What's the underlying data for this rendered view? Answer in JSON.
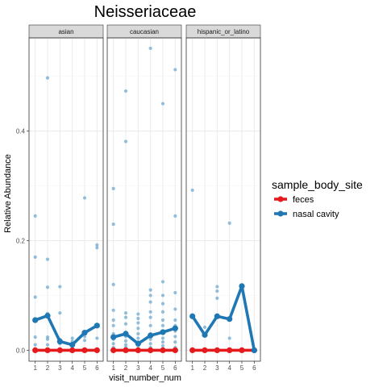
{
  "chart_data": {
    "type": "line",
    "title": "Neisseriaceae",
    "xlabel": "visit_number_num",
    "ylabel": "Relative Abundance",
    "x_ticks": [
      1,
      2,
      3,
      4,
      5,
      6
    ],
    "y_ticks": [
      0.0,
      0.2,
      0.4
    ],
    "y_tick_labels": [
      "0.0",
      "0.2",
      "0.4"
    ],
    "xlim": [
      0.5,
      6.5
    ],
    "ylim": [
      -0.02,
      0.57
    ],
    "grid": true,
    "legend_position": "right",
    "legend": {
      "title": "sample_body_site",
      "entries": [
        {
          "label": "feces",
          "color": "#e41a1c"
        },
        {
          "label": "nasal cavity",
          "color": "#1f78b4"
        }
      ]
    },
    "point_color": "#6fa8d0",
    "panels": [
      {
        "strip": "asian",
        "series": [
          {
            "name": "feces",
            "color": "#e41a1c",
            "x": [
              1,
              2,
              3,
              4,
              5,
              6
            ],
            "y": [
              0,
              0,
              0,
              0,
              0,
              0
            ]
          },
          {
            "name": "nasal cavity",
            "color": "#1f78b4",
            "x": [
              1,
              2,
              3,
              4,
              5,
              6
            ],
            "y": [
              0.055,
              0.063,
              0.016,
              0.01,
              0.032,
              0.045
            ]
          }
        ],
        "points": [
          [
            1,
            0.245
          ],
          [
            1,
            0.17
          ],
          [
            1,
            0.097
          ],
          [
            1,
            0.055
          ],
          [
            1,
            0.024
          ],
          [
            1,
            0.01
          ],
          [
            1,
            0.0
          ],
          [
            2,
            0.497
          ],
          [
            2,
            0.166
          ],
          [
            2,
            0.115
          ],
          [
            2,
            0.067
          ],
          [
            2,
            0.024
          ],
          [
            2,
            0.02
          ],
          [
            2,
            0.01
          ],
          [
            2,
            0.0
          ],
          [
            3,
            0.116
          ],
          [
            3,
            0.068
          ],
          [
            3,
            0.02
          ],
          [
            3,
            0.012
          ],
          [
            3,
            0.0
          ],
          [
            4,
            0.022
          ],
          [
            4,
            0.016
          ],
          [
            4,
            0.012
          ],
          [
            4,
            0.0
          ],
          [
            5,
            0.278
          ],
          [
            5,
            0.025
          ],
          [
            5,
            0.018
          ],
          [
            5,
            0.0
          ],
          [
            6,
            0.192
          ],
          [
            6,
            0.187
          ],
          [
            6,
            0.045
          ],
          [
            6,
            0.022
          ],
          [
            6,
            0.0
          ]
        ]
      },
      {
        "strip": "caucasian",
        "series": [
          {
            "name": "feces",
            "color": "#e41a1c",
            "x": [
              1,
              2,
              3,
              4,
              5,
              6
            ],
            "y": [
              0,
              0,
              0,
              0,
              0,
              0
            ]
          },
          {
            "name": "nasal cavity",
            "color": "#1f78b4",
            "x": [
              1,
              2,
              3,
              4,
              5,
              6
            ],
            "y": [
              0.024,
              0.03,
              0.012,
              0.027,
              0.033,
              0.04
            ]
          }
        ],
        "points": [
          [
            1,
            0.295
          ],
          [
            1,
            0.23
          ],
          [
            1,
            0.12
          ],
          [
            1,
            0.073
          ],
          [
            1,
            0.055
          ],
          [
            1,
            0.045
          ],
          [
            1,
            0.03
          ],
          [
            1,
            0.02
          ],
          [
            1,
            0.012
          ],
          [
            1,
            0.005
          ],
          [
            1,
            0.0
          ],
          [
            2,
            0.473
          ],
          [
            2,
            0.381
          ],
          [
            2,
            0.068
          ],
          [
            2,
            0.06
          ],
          [
            2,
            0.048
          ],
          [
            2,
            0.033
          ],
          [
            2,
            0.025
          ],
          [
            2,
            0.017
          ],
          [
            2,
            0.01
          ],
          [
            2,
            0.005
          ],
          [
            2,
            0.0
          ],
          [
            3,
            0.066
          ],
          [
            3,
            0.058
          ],
          [
            3,
            0.05
          ],
          [
            3,
            0.04
          ],
          [
            3,
            0.03
          ],
          [
            3,
            0.022
          ],
          [
            3,
            0.015
          ],
          [
            3,
            0.008
          ],
          [
            3,
            0.0
          ],
          [
            4,
            0.551
          ],
          [
            4,
            0.11
          ],
          [
            4,
            0.1
          ],
          [
            4,
            0.088
          ],
          [
            4,
            0.07
          ],
          [
            4,
            0.06
          ],
          [
            4,
            0.045
          ],
          [
            4,
            0.03
          ],
          [
            4,
            0.02
          ],
          [
            4,
            0.012
          ],
          [
            4,
            0.005
          ],
          [
            4,
            0.0
          ],
          [
            5,
            0.45
          ],
          [
            5,
            0.125
          ],
          [
            5,
            0.1
          ],
          [
            5,
            0.085
          ],
          [
            5,
            0.07
          ],
          [
            5,
            0.055
          ],
          [
            5,
            0.045
          ],
          [
            5,
            0.035
          ],
          [
            5,
            0.022
          ],
          [
            5,
            0.015
          ],
          [
            5,
            0.008
          ],
          [
            5,
            0.0
          ],
          [
            6,
            0.512
          ],
          [
            6,
            0.245
          ],
          [
            6,
            0.105
          ],
          [
            6,
            0.075
          ],
          [
            6,
            0.055
          ],
          [
            6,
            0.045
          ],
          [
            6,
            0.035
          ],
          [
            6,
            0.025
          ],
          [
            6,
            0.015
          ],
          [
            6,
            0.005
          ],
          [
            6,
            0.0
          ]
        ]
      },
      {
        "strip": "hispanic_or_latino",
        "series": [
          {
            "name": "feces",
            "color": "#e41a1c",
            "x": [
              1,
              2,
              3,
              4,
              5,
              6
            ],
            "y": [
              0,
              0,
              0,
              0,
              0,
              0
            ]
          },
          {
            "name": "nasal cavity",
            "color": "#1f78b4",
            "x": [
              1,
              2,
              3,
              4,
              5,
              6
            ],
            "y": [
              0.062,
              0.028,
              0.062,
              0.057,
              0.117,
              0.0
            ]
          }
        ],
        "points": [
          [
            1,
            0.292
          ],
          [
            1,
            0.062
          ],
          [
            1,
            0.0
          ],
          [
            2,
            0.042
          ],
          [
            2,
            0.028
          ],
          [
            2,
            0.0
          ],
          [
            3,
            0.116
          ],
          [
            3,
            0.108
          ],
          [
            3,
            0.095
          ],
          [
            3,
            0.062
          ],
          [
            3,
            0.0
          ],
          [
            4,
            0.232
          ],
          [
            4,
            0.057
          ],
          [
            4,
            0.022
          ],
          [
            4,
            0.0
          ],
          [
            5,
            0.117
          ],
          [
            5,
            0.0
          ],
          [
            6,
            0.0
          ]
        ]
      }
    ]
  }
}
